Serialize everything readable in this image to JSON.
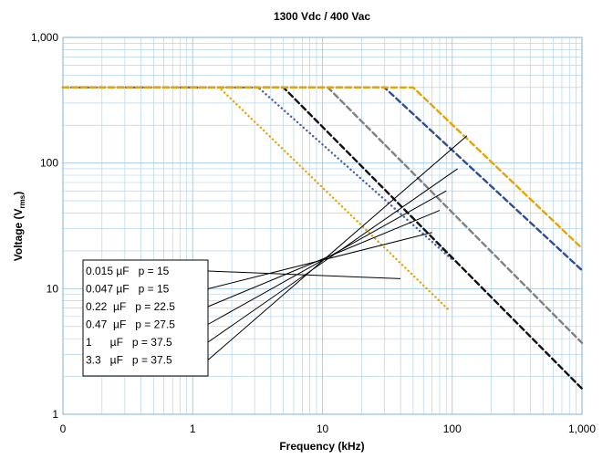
{
  "chart_data": {
    "type": "line",
    "title": "1300 Vdc / 400 Vac",
    "xlabel": "Frequency (kHz)",
    "ylabel": {
      "main": "Voltage (V",
      "sub": "rms",
      "close": ")"
    },
    "x_scale": "log",
    "y_scale": "log",
    "xlim": [
      0.1,
      1000
    ],
    "ylim": [
      1,
      1000
    ],
    "grid": true,
    "x_ticks": [
      {
        "value": 0.1,
        "label": "0"
      },
      {
        "value": 1,
        "label": "1"
      },
      {
        "value": 10,
        "label": "10"
      },
      {
        "value": 100,
        "label": "100"
      },
      {
        "value": 1000,
        "label": "1,000"
      }
    ],
    "y_ticks": [
      {
        "value": 1,
        "label": "1"
      },
      {
        "value": 10,
        "label": "10"
      },
      {
        "value": 100,
        "label": "100"
      },
      {
        "value": 1000,
        "label": "1,000"
      }
    ],
    "series": [
      {
        "name": "0.015 µF   p = 15",
        "color": "#e8a400",
        "dash": "dotted",
        "x": [
          0.1,
          1.6,
          95
        ],
        "y": [
          400,
          400,
          6.7
        ]
      },
      {
        "name": "0.047 µF   p = 15",
        "color": "#4a5fa5",
        "dash": "dotted",
        "x": [
          0.1,
          3.2,
          100
        ],
        "y": [
          400,
          400,
          17
        ]
      },
      {
        "name": "0.22  µF   p = 22.5",
        "color": "#111111",
        "dash": "dashed",
        "x": [
          0.1,
          5,
          1000
        ],
        "y": [
          400,
          400,
          1.6
        ]
      },
      {
        "name": "0.47  µF   p = 27.5",
        "color": "#808080",
        "dash": "dashed",
        "x": [
          0.1,
          11,
          1000
        ],
        "y": [
          400,
          400,
          3.7
        ]
      },
      {
        "name": "1      µF   p = 37.5",
        "color": "#2e4e8f",
        "dash": "dashed",
        "x": [
          0.1,
          30,
          1000
        ],
        "y": [
          400,
          400,
          14
        ]
      },
      {
        "name": "3.3   µF   p = 37.5",
        "color": "#e8a400",
        "dash": "dashed",
        "x": [
          0.1,
          50,
          1000
        ],
        "y": [
          400,
          400,
          21
        ]
      }
    ],
    "legend": {
      "placement": "bottom-left",
      "leader_targets": [
        {
          "x": 40,
          "y": 12
        },
        {
          "x": 70,
          "y": 28
        },
        {
          "x": 80,
          "y": 42
        },
        {
          "x": 90,
          "y": 60
        },
        {
          "x": 110,
          "y": 90
        },
        {
          "x": 130,
          "y": 165
        }
      ]
    }
  }
}
